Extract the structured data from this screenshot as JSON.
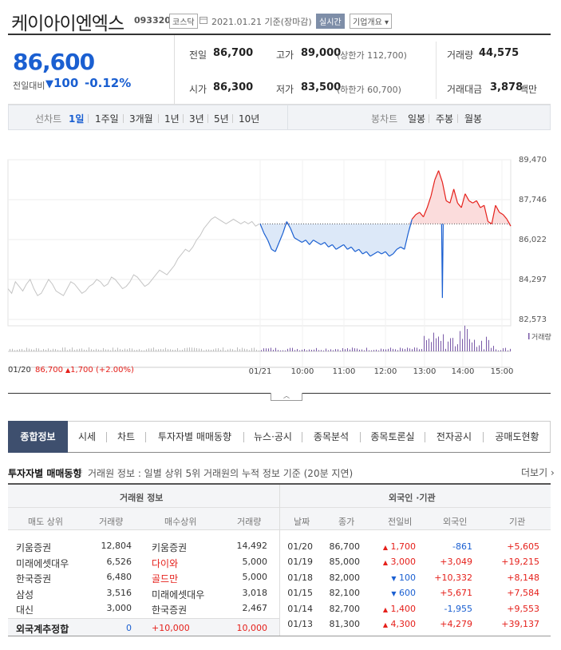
{
  "stock": {
    "name": "케이아이엔엑스",
    "code": "093320",
    "market": "코스닥",
    "date": "2021.01.21 기준(장마감)",
    "realtime": "실시간",
    "overview": "기업개요"
  },
  "quote": {
    "price": "86,600",
    "change_label": "전일대비",
    "change_value": "100",
    "change_pct": "-0.12%",
    "prev_close_label": "전일",
    "prev_close": "86,700",
    "high_label": "고가",
    "high": "89,000",
    "upper_limit": "(상한가 112,700)",
    "volume_label": "거래량",
    "volume": "44,575",
    "open_label": "시가",
    "open": "86,300",
    "low_label": "저가",
    "low": "83,500",
    "lower_limit": "(하한가 60,700)",
    "amount_label": "거래대금",
    "amount": "3,878",
    "amount_unit": "백만"
  },
  "periods": {
    "line_label": "선차트",
    "line_items": [
      "1일",
      "1주일",
      "3개월",
      "1년",
      "3년",
      "5년",
      "10년"
    ],
    "candle_label": "봉차트",
    "candle_items": [
      "일봉",
      "주봉",
      "월봉"
    ]
  },
  "chart_data": {
    "type": "line",
    "y_ticks": [
      "89,470",
      "87,746",
      "86,022",
      "84,297",
      "82,573"
    ],
    "ylim": [
      82573,
      89470
    ],
    "x_labels": [
      "01/21",
      "10:00",
      "11:00",
      "12:00",
      "13:00",
      "14:00",
      "15:00"
    ],
    "prev_day_label": "01/20",
    "prev_day_close": "86,700",
    "prev_day_change": "1,700",
    "prev_day_pct": "(+2.00%)",
    "volume_legend": "거래량",
    "reference_price": 86700,
    "prev_day_series": [
      83900,
      83700,
      84200,
      84000,
      83800,
      84100,
      84300,
      83900,
      83600,
      83700,
      84000,
      84300,
      84100,
      83800,
      83700,
      83600,
      83900,
      84200,
      84100,
      83900,
      83700,
      83800,
      84000,
      84100,
      84300,
      84200,
      84000,
      84100,
      84400,
      84300,
      84100,
      83900,
      84000,
      84200,
      84500,
      84400,
      84200,
      84000,
      84100,
      84300,
      84500,
      84700,
      84600,
      84500,
      84700,
      84900,
      85200,
      85400,
      85600,
      85500,
      85700,
      86000,
      86200,
      86500,
      86700,
      86900,
      87000,
      86900,
      86800,
      86700,
      86800,
      86900,
      86800,
      86700,
      86800,
      86700,
      86800,
      86600,
      86700
    ],
    "today_series": [
      86700,
      86300,
      86000,
      85600,
      85500,
      85900,
      86300,
      86800,
      86500,
      86100,
      86000,
      85900,
      86000,
      85800,
      86000,
      85900,
      85800,
      85900,
      85700,
      85800,
      85600,
      85700,
      85800,
      85600,
      85700,
      85500,
      85600,
      85400,
      85500,
      85300,
      85400,
      85500,
      85400,
      85500,
      85300,
      85400,
      85600,
      85700,
      85600,
      86300,
      86900,
      87100,
      87200,
      87000,
      87400,
      87900,
      88600,
      89000,
      88500,
      87700,
      87600,
      88200,
      87600,
      87400,
      88000,
      87700,
      87600,
      87700,
      87400,
      87500,
      86800,
      86700,
      87500,
      87200,
      87100,
      86900,
      86600
    ],
    "today_dip": {
      "at_index": 48,
      "value": 83500
    }
  },
  "tabs": [
    "종합정보",
    "시세",
    "차트",
    "투자자별 매매동향",
    "뉴스·공시",
    "종목분석",
    "종목토론실",
    "전자공시",
    "공매도현황"
  ],
  "section": {
    "title": "투자자별 매매동향",
    "desc": "거래원 정보 : 일별 상위 5위 거래원의 누적 정보 기준 (20분 지연)",
    "more": "더보기"
  },
  "broker": {
    "group": "거래원 정보",
    "headers": [
      "매도 상위",
      "거래량",
      "매수상위",
      "거래량"
    ],
    "rows": [
      {
        "sell": "키움증권",
        "sell_vol": "12,804",
        "buy": "키움증권",
        "buy_vol": "14,492",
        "buy_red": false
      },
      {
        "sell": "미래에셋대우",
        "sell_vol": "6,526",
        "buy": "다이와",
        "buy_vol": "5,000",
        "buy_red": true
      },
      {
        "sell": "한국증권",
        "sell_vol": "6,480",
        "buy": "골드만",
        "buy_vol": "5,000",
        "buy_red": true
      },
      {
        "sell": "삼성",
        "sell_vol": "3,516",
        "buy": "미래에셋대우",
        "buy_vol": "3,018",
        "buy_red": false
      },
      {
        "sell": "대신",
        "sell_vol": "3,000",
        "buy": "한국증권",
        "buy_vol": "2,467",
        "buy_red": false
      }
    ],
    "foreign_label": "외국계추정합",
    "foreign_sell": "0",
    "foreign_net": "+10,000",
    "foreign_buy": "10,000"
  },
  "investor": {
    "group": "외국인 ·기관",
    "headers": [
      "날짜",
      "종가",
      "전일비",
      "외국인",
      "기관"
    ],
    "rows": [
      {
        "date": "01/20",
        "close": "86,700",
        "chg": "1,700",
        "dir": "up",
        "foreign": "-861",
        "inst": "+5,605"
      },
      {
        "date": "01/19",
        "close": "85,000",
        "chg": "3,000",
        "dir": "up",
        "foreign": "+3,049",
        "inst": "+19,215"
      },
      {
        "date": "01/18",
        "close": "82,000",
        "chg": "100",
        "dir": "down",
        "foreign": "+10,332",
        "inst": "+8,148"
      },
      {
        "date": "01/15",
        "close": "82,100",
        "chg": "600",
        "dir": "down",
        "foreign": "+5,671",
        "inst": "+7,584"
      },
      {
        "date": "01/14",
        "close": "82,700",
        "chg": "1,400",
        "dir": "up",
        "foreign": "-1,955",
        "inst": "+9,553"
      },
      {
        "date": "01/13",
        "close": "81,300",
        "chg": "4,300",
        "dir": "up",
        "foreign": "+4,279",
        "inst": "+39,137"
      }
    ]
  },
  "colors": {
    "up": "#e5201b",
    "down": "#1a5fd1",
    "tab_active": "#3e4f6e"
  },
  "icons": {
    "down_arrow": "▼",
    "up_arrow": "▲",
    "collapse": "chevron-up-icon",
    "calendar": "calendar-icon"
  }
}
